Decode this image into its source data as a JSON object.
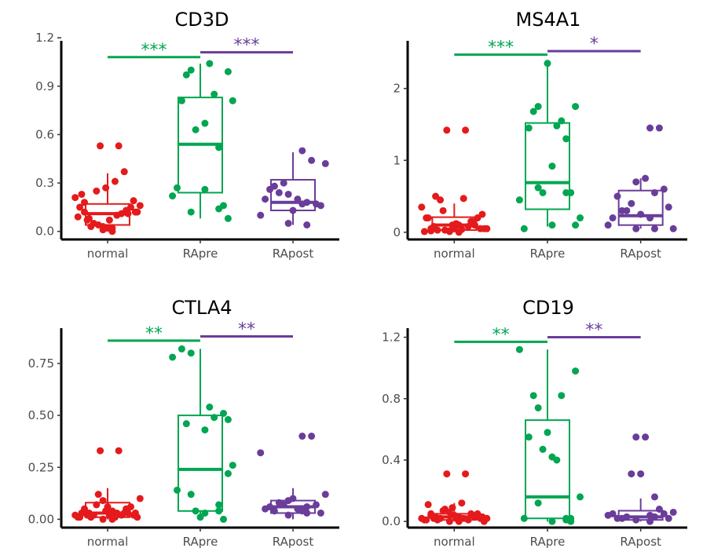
{
  "colors": {
    "normal": "#e41a1c",
    "RApre": "#00a651",
    "RApost": "#6a3d9a"
  },
  "chart_data": [
    {
      "type": "box",
      "title": "CD3D",
      "categories": [
        "normal",
        "RApre",
        "RApost"
      ],
      "ylim": [
        -0.05,
        1.22
      ],
      "yticks": [
        0.0,
        0.3,
        0.6,
        0.9,
        1.2
      ],
      "ytick_labels": [
        "0.0",
        "0.3",
        "0.6",
        "0.9",
        "1.2"
      ],
      "bracket_y": [
        1.08,
        1.11
      ],
      "significance": [
        {
          "from": "normal",
          "to": "RApre",
          "label": "***",
          "color": "#00a651"
        },
        {
          "from": "RApre",
          "to": "RApost",
          "label": "***",
          "color": "#6a3d9a"
        }
      ],
      "boxes": [
        {
          "group": "normal",
          "min": 0.0,
          "q1": 0.04,
          "median": 0.11,
          "q3": 0.17,
          "max": 0.36
        },
        {
          "group": "RApre",
          "min": 0.08,
          "q1": 0.24,
          "median": 0.54,
          "q3": 0.83,
          "max": 1.04
        },
        {
          "group": "RApost",
          "min": 0.04,
          "q1": 0.13,
          "median": 0.18,
          "q3": 0.32,
          "max": 0.49
        }
      ],
      "points": [
        {
          "group": "normal",
          "x": [
            -0.35,
            -0.3,
            -0.25,
            -0.2,
            -0.15,
            -0.1,
            -0.05,
            0.0,
            0.05,
            0.1,
            0.15,
            0.2,
            0.25,
            0.3,
            0.35,
            -0.32,
            -0.22,
            -0.12,
            -0.02,
            0.08,
            0.18,
            0.28,
            -0.28,
            -0.08,
            0.12,
            0.32,
            -0.18,
            0.02,
            0.22,
            -0.05,
            0.05,
            -0.25
          ],
          "y": [
            0.21,
            0.15,
            0.12,
            0.08,
            0.05,
            0.04,
            0.03,
            0.02,
            0.02,
            0.1,
            0.11,
            0.13,
            0.15,
            0.12,
            0.16,
            0.09,
            0.07,
            0.25,
            0.27,
            0.31,
            0.37,
            0.19,
            0.23,
            0.53,
            0.53,
            0.12,
            0.03,
            0.07,
            0.11,
            0.01,
            0.0,
            0.18
          ]
        },
        {
          "group": "RApre",
          "x": [
            -0.2,
            -0.15,
            -0.1,
            0.1,
            0.15,
            0.3,
            0.35,
            -0.25,
            -0.05,
            0.05,
            0.2,
            0.25,
            -0.3,
            0.3,
            -0.1,
            0.05,
            0.2
          ],
          "y": [
            0.81,
            0.97,
            1.0,
            1.04,
            0.85,
            0.99,
            0.81,
            0.27,
            0.63,
            0.26,
            0.52,
            0.16,
            0.22,
            0.08,
            0.12,
            0.67,
            0.14
          ]
        },
        {
          "group": "RApost",
          "x": [
            -0.35,
            -0.25,
            -0.15,
            -0.05,
            0.05,
            0.15,
            0.25,
            0.35,
            -0.3,
            -0.2,
            -0.1,
            0.0,
            0.1,
            0.2,
            0.3,
            -0.05,
            0.15,
            0.1
          ],
          "y": [
            0.1,
            0.26,
            0.24,
            0.23,
            0.2,
            0.18,
            0.17,
            0.42,
            0.2,
            0.28,
            0.3,
            0.13,
            0.5,
            0.44,
            0.16,
            0.05,
            0.04,
            0.17
          ]
        }
      ]
    },
    {
      "type": "box",
      "title": "MS4A1",
      "categories": [
        "normal",
        "RApre",
        "RApost"
      ],
      "ylim": [
        -0.1,
        2.75
      ],
      "yticks": [
        0,
        1,
        2
      ],
      "ytick_labels": [
        "0",
        "1",
        "2"
      ],
      "bracket_y": [
        2.47,
        2.52
      ],
      "significance": [
        {
          "from": "normal",
          "to": "RApre",
          "label": "***",
          "color": "#00a651"
        },
        {
          "from": "RApre",
          "to": "RApost",
          "label": "*",
          "color": "#6a3d9a"
        }
      ],
      "boxes": [
        {
          "group": "normal",
          "min": 0.0,
          "q1": 0.03,
          "median": 0.1,
          "q3": 0.21,
          "max": 0.4
        },
        {
          "group": "RApre",
          "min": 0.08,
          "q1": 0.32,
          "median": 0.69,
          "q3": 1.52,
          "max": 2.35
        },
        {
          "group": "RApost",
          "min": 0.05,
          "q1": 0.1,
          "median": 0.23,
          "q3": 0.58,
          "max": 0.75
        }
      ],
      "points": [
        {
          "group": "normal",
          "x": [
            -0.35,
            -0.3,
            -0.25,
            -0.2,
            -0.15,
            -0.1,
            -0.05,
            0.0,
            0.05,
            0.1,
            0.15,
            0.2,
            0.25,
            0.3,
            0.35,
            -0.32,
            -0.22,
            -0.12,
            -0.02,
            0.08,
            0.18,
            0.28,
            -0.28,
            -0.08,
            0.12,
            0.32,
            -0.18,
            0.02,
            0.22,
            -0.05,
            0.05,
            -0.25
          ],
          "y": [
            0.35,
            0.2,
            0.05,
            0.5,
            0.45,
            0.03,
            0.02,
            0.05,
            0.1,
            0.47,
            0.08,
            0.15,
            0.2,
            0.25,
            0.05,
            0.01,
            0.08,
            0.3,
            0.1,
            0.04,
            0.15,
            0.05,
            0.2,
            1.42,
            1.42,
            0.05,
            0.03,
            0.12,
            0.1,
            0.01,
            0.0,
            0.02
          ]
        },
        {
          "group": "RApre",
          "x": [
            -0.2,
            -0.15,
            -0.1,
            0.1,
            0.15,
            0.3,
            0.35,
            -0.25,
            -0.05,
            0.05,
            0.2,
            0.25,
            -0.3,
            0.3,
            -0.1,
            0.05,
            0.2,
            0.0
          ],
          "y": [
            1.45,
            1.68,
            1.75,
            1.48,
            1.55,
            1.75,
            0.2,
            0.05,
            0.55,
            0.92,
            1.3,
            0.55,
            0.45,
            0.1,
            0.62,
            0.1,
            0.55,
            2.35
          ]
        },
        {
          "group": "RApost",
          "x": [
            -0.35,
            -0.25,
            -0.15,
            -0.05,
            0.05,
            0.15,
            0.25,
            0.35,
            -0.3,
            -0.2,
            -0.1,
            0.0,
            0.1,
            0.2,
            0.3,
            -0.05,
            0.15,
            0.1
          ],
          "y": [
            0.1,
            0.5,
            0.3,
            0.7,
            0.75,
            0.55,
            0.6,
            0.05,
            0.2,
            0.3,
            0.4,
            0.25,
            1.45,
            1.45,
            0.35,
            0.05,
            0.05,
            0.2
          ]
        }
      ]
    },
    {
      "type": "box",
      "title": "CTLA4",
      "categories": [
        "normal",
        "RApre",
        "RApost"
      ],
      "ylim": [
        -0.04,
        0.95
      ],
      "yticks": [
        0.0,
        0.25,
        0.5,
        0.75
      ],
      "ytick_labels": [
        "0.00",
        "0.25",
        "0.50",
        "0.75"
      ],
      "bracket_y": [
        0.86,
        0.88
      ],
      "significance": [
        {
          "from": "normal",
          "to": "RApre",
          "label": "**",
          "color": "#00a651"
        },
        {
          "from": "RApre",
          "to": "RApost",
          "label": "**",
          "color": "#6a3d9a"
        }
      ],
      "boxes": [
        {
          "group": "normal",
          "min": 0.0,
          "q1": 0.01,
          "median": 0.03,
          "q3": 0.08,
          "max": 0.15
        },
        {
          "group": "RApre",
          "min": 0.0,
          "q1": 0.04,
          "median": 0.24,
          "q3": 0.5,
          "max": 0.82
        },
        {
          "group": "RApost",
          "min": 0.0,
          "q1": 0.03,
          "median": 0.06,
          "q3": 0.09,
          "max": 0.15
        }
      ],
      "points": [
        {
          "group": "normal",
          "x": [
            -0.35,
            -0.3,
            -0.25,
            -0.2,
            -0.15,
            -0.1,
            -0.05,
            0.0,
            0.05,
            0.1,
            0.15,
            0.2,
            0.25,
            0.3,
            0.35,
            -0.32,
            -0.22,
            -0.12,
            -0.02,
            0.08,
            0.18,
            0.28,
            -0.28,
            -0.08,
            0.12,
            0.32,
            -0.18,
            0.02,
            0.22,
            -0.05,
            0.05,
            -0.25
          ],
          "y": [
            0.02,
            0.01,
            0.05,
            0.03,
            0.02,
            0.12,
            0.09,
            0.06,
            0.04,
            0.03,
            0.02,
            0.05,
            0.06,
            0.03,
            0.1,
            0.01,
            0.02,
            0.07,
            0.04,
            0.01,
            0.03,
            0.02,
            0.03,
            0.33,
            0.33,
            0.01,
            0.01,
            0.02,
            0.03,
            0.0,
            0.0,
            0.04
          ]
        },
        {
          "group": "RApre",
          "x": [
            -0.2,
            -0.15,
            -0.1,
            0.1,
            0.15,
            0.3,
            0.35,
            -0.25,
            -0.05,
            0.05,
            0.2,
            0.25,
            -0.3,
            0.3,
            -0.1,
            0.05,
            0.2,
            0.0,
            0.25
          ],
          "y": [
            0.82,
            0.46,
            0.8,
            0.54,
            0.49,
            0.48,
            0.26,
            0.14,
            0.04,
            0.43,
            0.07,
            0.51,
            0.78,
            0.22,
            0.12,
            0.03,
            0.04,
            0.01,
            0.0
          ]
        },
        {
          "group": "RApost",
          "x": [
            -0.35,
            -0.25,
            -0.15,
            -0.05,
            0.05,
            0.15,
            0.25,
            0.35,
            -0.3,
            -0.2,
            -0.1,
            0.0,
            0.1,
            0.2,
            0.3,
            -0.05,
            0.15,
            0.1
          ],
          "y": [
            0.32,
            0.06,
            0.08,
            0.09,
            0.05,
            0.03,
            0.07,
            0.12,
            0.05,
            0.04,
            0.07,
            0.1,
            0.4,
            0.4,
            0.03,
            0.02,
            0.06,
            0.04
          ]
        }
      ]
    },
    {
      "type": "box",
      "title": "CD19",
      "categories": [
        "normal",
        "RApre",
        "RApost"
      ],
      "ylim": [
        -0.04,
        1.3
      ],
      "yticks": [
        0.0,
        0.4,
        0.8,
        1.2
      ],
      "ytick_labels": [
        "0.0",
        "0.4",
        "0.8",
        "1.2"
      ],
      "bracket_y": [
        1.17,
        1.2
      ],
      "significance": [
        {
          "from": "normal",
          "to": "RApre",
          "label": "**",
          "color": "#00a651"
        },
        {
          "from": "RApre",
          "to": "RApost",
          "label": "**",
          "color": "#6a3d9a"
        }
      ],
      "boxes": [
        {
          "group": "normal",
          "min": 0.0,
          "q1": 0.01,
          "median": 0.03,
          "q3": 0.05,
          "max": 0.12
        },
        {
          "group": "RApre",
          "min": 0.0,
          "q1": 0.02,
          "median": 0.16,
          "q3": 0.66,
          "max": 1.12
        },
        {
          "group": "RApost",
          "min": 0.0,
          "q1": 0.01,
          "median": 0.03,
          "q3": 0.07,
          "max": 0.15
        }
      ],
      "points": [
        {
          "group": "normal",
          "x": [
            -0.35,
            -0.3,
            -0.25,
            -0.2,
            -0.15,
            -0.1,
            -0.05,
            0.0,
            0.05,
            0.1,
            0.15,
            0.2,
            0.25,
            0.3,
            0.35,
            -0.32,
            -0.22,
            -0.12,
            -0.02,
            0.08,
            0.18,
            0.28,
            -0.28,
            -0.08,
            0.12,
            0.32,
            -0.18,
            0.02,
            0.22,
            -0.05,
            0.05,
            -0.25
          ],
          "y": [
            0.02,
            0.01,
            0.05,
            0.03,
            0.02,
            0.08,
            0.06,
            0.04,
            0.03,
            0.02,
            0.01,
            0.04,
            0.05,
            0.03,
            0.02,
            0.01,
            0.02,
            0.07,
            0.09,
            0.12,
            0.05,
            0.02,
            0.11,
            0.31,
            0.31,
            0.0,
            0.01,
            0.02,
            0.03,
            0.0,
            0.0,
            0.04
          ]
        },
        {
          "group": "RApre",
          "x": [
            -0.3,
            -0.15,
            -0.1,
            0.1,
            0.15,
            0.3,
            0.35,
            -0.25,
            -0.05,
            0.05,
            0.2,
            0.25,
            -0.2,
            0.0,
            -0.1,
            0.05,
            0.2,
            0.25
          ],
          "y": [
            1.12,
            0.82,
            0.74,
            0.4,
            0.82,
            0.98,
            0.16,
            0.02,
            0.47,
            0.42,
            0.01,
            0.02,
            0.55,
            0.58,
            0.12,
            0.0,
            0.02,
            0.0
          ]
        },
        {
          "group": "RApost",
          "x": [
            -0.35,
            -0.25,
            -0.15,
            -0.05,
            0.05,
            0.15,
            0.25,
            0.35,
            -0.3,
            -0.2,
            -0.1,
            0.0,
            0.1,
            0.2,
            0.3,
            -0.05,
            0.15,
            0.1
          ],
          "y": [
            0.04,
            0.02,
            0.03,
            0.55,
            0.55,
            0.16,
            0.05,
            0.06,
            0.05,
            0.02,
            0.31,
            0.31,
            0.04,
            0.08,
            0.02,
            0.01,
            0.03,
            0.0
          ]
        }
      ]
    }
  ]
}
